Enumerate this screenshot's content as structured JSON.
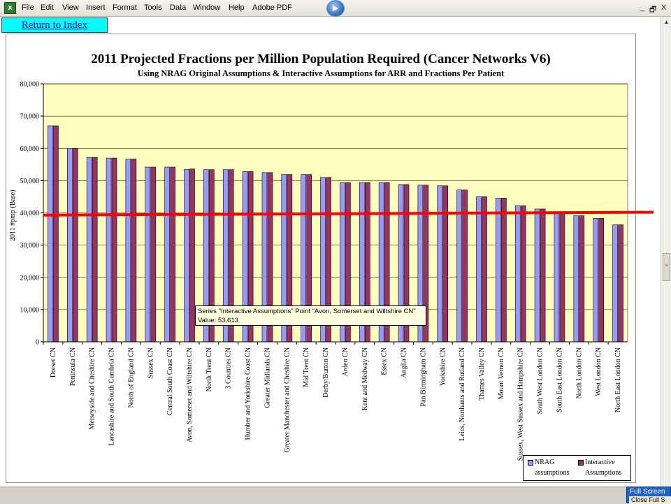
{
  "menubar": {
    "items": [
      "File",
      "Edit",
      "View",
      "Insert",
      "Format",
      "Tools",
      "Data",
      "Window",
      "Help",
      "Adobe PDF"
    ],
    "window_controls": [
      "_",
      "🗗",
      "X"
    ]
  },
  "return_button": {
    "label": "Return to Index"
  },
  "tooltip": {
    "line1": "Series \"Interactive Assumptions\" Point \"Avon, Somerset and Wiltshire CN\"",
    "line2": "Value: 53,613"
  },
  "fullscreen": {
    "title": "Full Screen",
    "close": "Close Full S"
  },
  "colors": {
    "plot_bg": "#ffffc0",
    "nrag": "#9999ff",
    "interactive": "#993366",
    "reference_line": "#ff0000"
  },
  "chart_data": {
    "type": "bar",
    "title": "2011 Projected Fractions per Million Population Required (Cancer Networks V6)",
    "subtitle": "Using NRAG Original Assumptions & Interactive Assumptions for ARR and Fractions Per Patient",
    "ylabel": "2011 #pmp (Base)",
    "ylim": [
      0,
      80000
    ],
    "yticks": [
      "0",
      "10,000",
      "20,000",
      "30,000",
      "40,000",
      "50,000",
      "60,000",
      "70,000",
      "80,000"
    ],
    "categories": [
      "Dorset CN",
      "Peninsula CN",
      "Merseyside and Cheshire CN",
      "Lancashire and South Cumbria CN",
      "North of England CN",
      "Sussex CN",
      "Central South Coast CN",
      "Avon, Somerset and Wiltshire CN",
      "North Trent CN",
      "3 Counties CN",
      "Humber and Yorkshire Coast CN",
      "Greater Midlands CN",
      "Greater Manchester and Cheshire CN",
      "Mid Trent CN",
      "Derby/Burton CN",
      "Arden CN",
      "Kent and Medway CN",
      "Essex CN",
      "Anglia CN",
      "Pan Birmingham CN",
      "Yorkshire CN",
      "Leics, Northants and Rutland CN",
      "Thames Valley CN",
      "Mount Vernon CN",
      "Sussex, West Sussex and Hampshire CN",
      "South West London CN",
      "South East London CN",
      "North London CN",
      "West London CN",
      "North East London CN"
    ],
    "series": [
      {
        "name": "NRAG assumptions",
        "values": [
          67000,
          60000,
          57200,
          57000,
          56700,
          54200,
          54200,
          53500,
          53400,
          53400,
          52800,
          52500,
          51900,
          51900,
          51000,
          49400,
          49400,
          49400,
          48800,
          48600,
          48400,
          47100,
          45000,
          44600,
          42200,
          41200,
          40300,
          39100,
          38300,
          36300
        ]
      },
      {
        "name": "Interactive Assumptions",
        "values": [
          67000,
          60000,
          57200,
          57000,
          56700,
          54200,
          54200,
          53613,
          53400,
          53400,
          52800,
          52500,
          51900,
          51900,
          51000,
          49400,
          49400,
          49400,
          48800,
          48600,
          48400,
          47100,
          45000,
          44600,
          42200,
          41200,
          40300,
          39100,
          38300,
          36300
        ]
      }
    ],
    "reference_line": {
      "y_start": 39300,
      "y_end": 40200
    },
    "legend": {
      "placement": "bottom-right",
      "entries": [
        [
          "NRAG",
          "assumptions"
        ],
        [
          "Interactive",
          "Assumptions"
        ]
      ]
    },
    "grid": true
  }
}
